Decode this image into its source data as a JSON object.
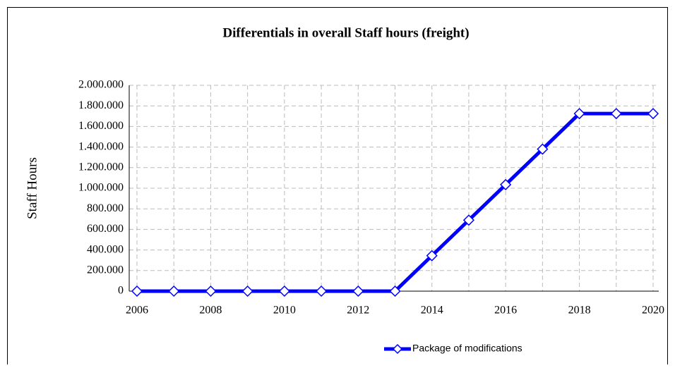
{
  "chart_data": {
    "type": "line",
    "title": "Differentials in overall Staff hours (freight)",
    "y_label": "Staff Hours",
    "categories": [
      "2006",
      null,
      "2008",
      null,
      "2010",
      null,
      "2012",
      null,
      "2014",
      null,
      "2016",
      null,
      "2018",
      null,
      "2020"
    ],
    "series": [
      {
        "name": "Package of modifications",
        "color": "#0000ff",
        "values": [
          0,
          0,
          0,
          0,
          0,
          0,
          0,
          0,
          345000,
          690000,
          1035000,
          1380000,
          1725000,
          1725000,
          1725000
        ]
      }
    ],
    "ylim": [
      0,
      2000000
    ],
    "yticks": [
      0,
      {
        "value": 200000,
        "label": "200.000"
      },
      {
        "value": 400000,
        "label": "400.000"
      },
      {
        "value": 600000,
        "label": "600.000"
      },
      {
        "value": 800000,
        "label": "800.000"
      },
      {
        "value": 1000000,
        "label": "1.000.000"
      },
      {
        "value": 1200000,
        "label": "1.200.000"
      },
      {
        "value": 1400000,
        "label": "1.400.000"
      },
      {
        "value": 1600000,
        "label": "1.600.000"
      },
      {
        "value": 1800000,
        "label": "1.800.000"
      },
      {
        "value": 2000000,
        "label": "2.000.000"
      }
    ],
    "grid": true,
    "legend": "bottom"
  }
}
